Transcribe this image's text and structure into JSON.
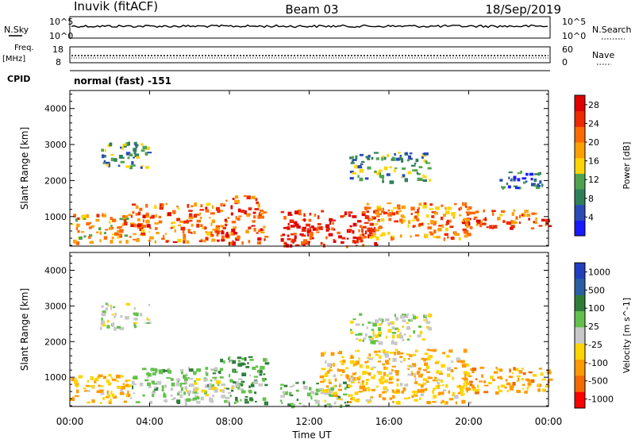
{
  "header": {
    "station": "Inuvik (fitACF)",
    "beam": "Beam 03",
    "date": "18/Sep/2019"
  },
  "summary_panels": {
    "nsky_label": "N.Sky",
    "nsky_ticks": [
      "10^5",
      "10^0"
    ],
    "nsearch_label": "N.Search",
    "nsearch_ticks": [
      "10^5",
      "10^0"
    ],
    "freq_label": "Freq.",
    "freq_unit": "[MHz]",
    "freq_ticks": [
      "18",
      "8"
    ],
    "nave_label": "Nave",
    "nave_ticks": [
      "60",
      "0"
    ],
    "cpid_label": "CPID",
    "cpid_value": "normal (fast) -151"
  },
  "colors": {
    "power_scale": [
      "#1a1aff",
      "#2a4cb8",
      "#2f7f5b",
      "#4fa34f",
      "#ffd400",
      "#ff9f00",
      "#ff6a00",
      "#ee2a00",
      "#e00000"
    ],
    "velocity_scale": [
      "#1f3fbf",
      "#2a5ea5",
      "#2e7d3a",
      "#63c14b",
      "#c8c8c8",
      "#ffd400",
      "#ff9a00",
      "#f26a00",
      "#ff0000"
    ]
  },
  "chart_data": [
    {
      "type": "heatmap",
      "title": "",
      "xlabel": "Time UT",
      "ylabel": "Slant Range [km]",
      "x_ticks": [
        "00:00",
        "04:00",
        "08:00",
        "12:00",
        "16:00",
        "20:00",
        "00:00"
      ],
      "y_ticks": [
        "1000",
        "2000",
        "3000",
        "4000"
      ],
      "xlim_hours": [
        0,
        24
      ],
      "ylim_km": [
        180,
        4500
      ],
      "colorbar": {
        "label": "Power [dB]",
        "ticks": [
          "4",
          "8",
          "12",
          "16",
          "20",
          "24",
          "28"
        ],
        "range": [
          0,
          30
        ]
      },
      "regions": [
        {
          "t0": 0.0,
          "t1": 3.0,
          "r0": 300,
          "r1": 1100,
          "value": 18
        },
        {
          "t0": 3.0,
          "t1": 7.5,
          "r0": 300,
          "r1": 1400,
          "value": 22
        },
        {
          "t0": 7.5,
          "t1": 9.8,
          "r0": 300,
          "r1": 1600,
          "value": 24
        },
        {
          "t0": 10.5,
          "t1": 15.5,
          "r0": 200,
          "r1": 1200,
          "value": 26
        },
        {
          "t0": 14.5,
          "t1": 20.0,
          "r0": 400,
          "r1": 1400,
          "value": 20
        },
        {
          "t0": 19.5,
          "t1": 24.0,
          "r0": 700,
          "r1": 1200,
          "value": 22
        },
        {
          "t0": 1.5,
          "t1": 4.0,
          "r0": 2400,
          "r1": 3100,
          "value": 10
        },
        {
          "t0": 14.0,
          "t1": 18.0,
          "r0": 2000,
          "r1": 2800,
          "value": 10
        },
        {
          "t0": 21.5,
          "t1": 24.0,
          "r0": 1800,
          "r1": 2300,
          "value": 7
        }
      ]
    },
    {
      "type": "heatmap",
      "title": "",
      "xlabel": "Time UT",
      "ylabel": "Slant Range [km]",
      "x_ticks": [
        "00:00",
        "04:00",
        "08:00",
        "12:00",
        "16:00",
        "20:00",
        "00:00"
      ],
      "y_ticks": [
        "1000",
        "2000",
        "3000",
        "4000"
      ],
      "xlim_hours": [
        0,
        24
      ],
      "ylim_km": [
        180,
        4500
      ],
      "colorbar": {
        "label": "Velocity [m s^-1]",
        "ticks": [
          "1000",
          "500",
          "100",
          "25",
          "-25",
          "-100",
          "-500",
          "-1000"
        ],
        "range": [
          -1000,
          1000
        ]
      },
      "regions": [
        {
          "t0": 0.0,
          "t1": 3.0,
          "r0": 300,
          "r1": 1100,
          "value": -300
        },
        {
          "t0": 3.0,
          "t1": 7.5,
          "r0": 300,
          "r1": 1300,
          "value": 150
        },
        {
          "t0": 5.5,
          "t1": 8.5,
          "r0": 500,
          "r1": 1000,
          "value": 0
        },
        {
          "t0": 7.5,
          "t1": 9.8,
          "r0": 300,
          "r1": 1600,
          "value": 300
        },
        {
          "t0": 10.5,
          "t1": 14.0,
          "r0": 200,
          "r1": 900,
          "value": 200
        },
        {
          "t0": 12.5,
          "t1": 20.0,
          "r0": 300,
          "r1": 1800,
          "value": -300
        },
        {
          "t0": 19.5,
          "t1": 24.0,
          "r0": 600,
          "r1": 1300,
          "value": -400
        },
        {
          "t0": 1.5,
          "t1": 4.0,
          "r0": 2400,
          "r1": 3100,
          "value": 0
        },
        {
          "t0": 14.0,
          "t1": 18.0,
          "r0": 2000,
          "r1": 2800,
          "value": 0
        }
      ]
    }
  ]
}
